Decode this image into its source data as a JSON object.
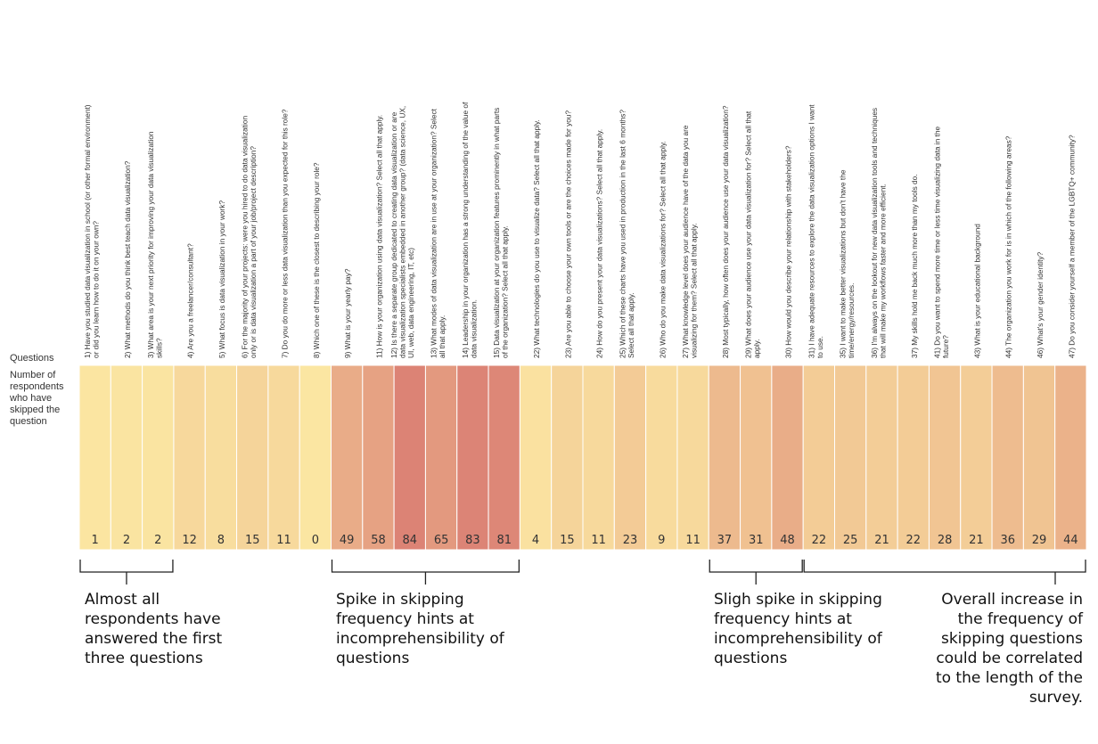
{
  "chart_data": {
    "type": "heatmap",
    "row_labels": {
      "questions": "Questions",
      "skipped": "Number of respondents who have skipped the question"
    },
    "categories": [
      "1) Have you studied data visualization in school (or other formal environment) or did you learn how to do it on your own?",
      "2) What methods do you think best teach data visualization?",
      "3) What area is your next priority for improving your data visualization skills?",
      "4) Are you a freelancer/consultant?",
      "5) What focus is data visualization in your work?",
      "6) For the majority of your projects: were you hired to do data visualization only or is data visualization a part of your job/project description?",
      "7) Do you do more or less data visualization than you expected for this role?",
      "8) Which one of these is the closest to describing your role?",
      "9) What is your yearly pay?",
      "11) How is your organization using data visualization? Select all that apply.",
      "12) Is there a separate group dedicated to creating data visualization or are data visualization specialists embedded in another group? (data science, UX, UI, web, data engineering, IT, etc)",
      "13) What modes of data visualization are in use at your organization? Select all that apply.",
      "14) Leadership in your organization has a strong understanding of the value of data visualization.",
      "15) Data visualization at your organization features prominently in what parts of the organization? Select all that apply.",
      "22) What technologies do you use to visualize data? Select all that apply.",
      "23) Are you able to choose your own tools or are the choices made for you?",
      "24) How do you present your data visualizations? Select all that apply.",
      "25) Which of these charts have you used in production in the last 6 months? Select all that apply.",
      "26) Who do you make data visualizations for? Select all that apply.",
      "27) What knowledge level does your audience have of the data you are visualizing for them? Select all that apply.",
      "28) Most typically, how often does your audience use your data visualization?",
      "29) What does your audience use your data visualization for? Select all that apply.",
      "30) How would you describe your relationship with stakeholders?",
      "31) I have adequate resources to explore the data visualization options I want to use.",
      "35) I want to make better visualizations but don't have the time/energy/resources.",
      "36) I'm always on the lookout for new data visualization tools and techniques that will make my workflows faster and more efficient.",
      "37) My skills hold me back much more than my tools do.",
      "41) Do you want to spend more time or less time visualizing data in the future?",
      "43) What is your educational background",
      "44) The organization you work for is in which of the following areas?",
      "46) What's your gender identity?",
      "47) Do you consider yourself a member of the LGBTQ+ community?"
    ],
    "values": [
      1,
      2,
      2,
      12,
      8,
      15,
      11,
      0,
      49,
      58,
      84,
      65,
      83,
      81,
      4,
      15,
      11,
      23,
      9,
      11,
      37,
      31,
      48,
      22,
      25,
      21,
      22,
      28,
      21,
      36,
      29,
      44
    ],
    "color_scale": {
      "min": 0,
      "max": 84,
      "low_color": "#fbe6a2",
      "high_color": "#dc8375"
    },
    "annotations": [
      {
        "from": 0,
        "to": 2,
        "text": "Almost all respondents have answered the first three questions",
        "align": "left"
      },
      {
        "from": 8,
        "to": 13,
        "text": "Spike in skipping frequency hints at incomprehensibility of questions",
        "align": "left"
      },
      {
        "from": 20,
        "to": 22,
        "text": "Sligh spike in skipping frequency hints at incomprehensibility of questions",
        "align": "left"
      },
      {
        "from": 23,
        "to": 31,
        "text": "Overall increase in the frequency of skipping questions could be correlated to the length of the survey.",
        "align": "right"
      }
    ]
  }
}
